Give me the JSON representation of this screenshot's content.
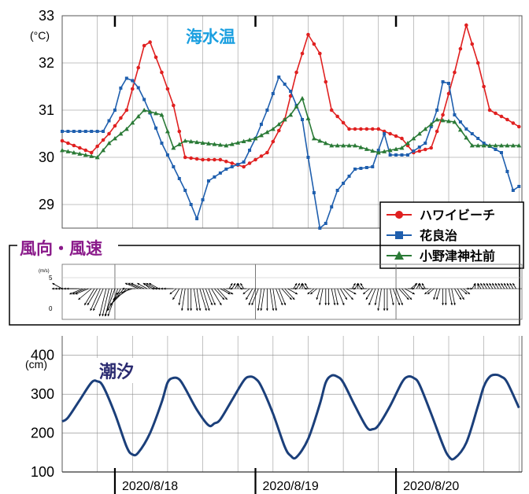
{
  "chart_data": [
    {
      "type": "line",
      "title": "海水温",
      "unit_label": "(°C)",
      "ylim": [
        28.5,
        33
      ],
      "yticks": [
        29,
        30,
        31,
        32,
        33
      ],
      "x_range": [
        "2020-08-17T06:00",
        "2020-08-20T19:00"
      ],
      "x_step_hours": 2,
      "grid": true,
      "legend_position": "right",
      "series": [
        {
          "name": "ハワイビーチ",
          "color": "#e02020",
          "marker": "circle",
          "points": [
            [
              0,
              30.35
            ],
            [
              10,
              30.1
            ],
            [
              16,
              30.5
            ],
            [
              22,
              31.0
            ],
            [
              26,
              31.9
            ],
            [
              29,
              32.6
            ],
            [
              34,
              31.8
            ],
            [
              38,
              31.1
            ],
            [
              42,
              30.0
            ],
            [
              48,
              29.95
            ],
            [
              54,
              29.95
            ],
            [
              62,
              29.8
            ],
            [
              70,
              30.1
            ],
            [
              76,
              30.8
            ],
            [
              80,
              31.8
            ],
            [
              84,
              32.6
            ],
            [
              88,
              32.2
            ],
            [
              92,
              31.0
            ],
            [
              98,
              30.6
            ],
            [
              108,
              30.6
            ],
            [
              116,
              30.4
            ],
            [
              120,
              30.1
            ],
            [
              126,
              30.2
            ],
            [
              130,
              30.9
            ],
            [
              134,
              31.8
            ],
            [
              138,
              32.8
            ],
            [
              142,
              32.0
            ],
            [
              146,
              31.0
            ],
            [
              152,
              30.8
            ],
            [
              156,
              30.65
            ],
            [
              160,
              30.65
            ]
          ]
        },
        {
          "name": "花良治",
          "color": "#1f5fae",
          "marker": "square",
          "points": [
            [
              0,
              30.55
            ],
            [
              14,
              30.55
            ],
            [
              18,
              31.0
            ],
            [
              21,
              31.7
            ],
            [
              25,
              31.6
            ],
            [
              29,
              31.1
            ],
            [
              34,
              30.3
            ],
            [
              38,
              29.8
            ],
            [
              42,
              29.3
            ],
            [
              46,
              28.7
            ],
            [
              50,
              29.5
            ],
            [
              56,
              29.75
            ],
            [
              62,
              29.9
            ],
            [
              66,
              30.4
            ],
            [
              70,
              31.0
            ],
            [
              74,
              31.7
            ],
            [
              78,
              31.4
            ],
            [
              82,
              30.8
            ],
            [
              84,
              30.0
            ],
            [
              88,
              28.5
            ],
            [
              90,
              28.6
            ],
            [
              94,
              29.3
            ],
            [
              100,
              29.75
            ],
            [
              106,
              29.8
            ],
            [
              110,
              30.5
            ],
            [
              112,
              30.05
            ],
            [
              118,
              30.05
            ],
            [
              124,
              30.3
            ],
            [
              128,
              31.0
            ],
            [
              131,
              31.9
            ],
            [
              134,
              30.9
            ],
            [
              138,
              30.6
            ],
            [
              144,
              30.3
            ],
            [
              150,
              30.1
            ],
            [
              154,
              29.3
            ],
            [
              160,
              29.55
            ]
          ]
        },
        {
          "name": "小野津神社前",
          "color": "#2a7a36",
          "marker": "triangle",
          "points": [
            [
              0,
              30.15
            ],
            [
              12,
              30.0
            ],
            [
              16,
              30.3
            ],
            [
              22,
              30.6
            ],
            [
              28,
              31.0
            ],
            [
              34,
              30.9
            ],
            [
              38,
              30.2
            ],
            [
              42,
              30.35
            ],
            [
              56,
              30.25
            ],
            [
              66,
              30.4
            ],
            [
              72,
              30.6
            ],
            [
              78,
              30.9
            ],
            [
              82,
              31.25
            ],
            [
              86,
              30.4
            ],
            [
              92,
              30.25
            ],
            [
              100,
              30.25
            ],
            [
              108,
              30.1
            ],
            [
              116,
              30.2
            ],
            [
              122,
              30.5
            ],
            [
              128,
              30.8
            ],
            [
              134,
              30.75
            ],
            [
              140,
              30.25
            ],
            [
              150,
              30.25
            ],
            [
              160,
              30.25
            ]
          ]
        }
      ]
    },
    {
      "type": "vector",
      "title": "風向・風速",
      "unit_label": "(m/s)",
      "ylim": [
        0,
        5
      ],
      "yticks": [
        0,
        5
      ],
      "x_range": [
        "2020-08-17T06:00",
        "2020-08-20T19:00"
      ],
      "vectors_hourly": [
        [
          -3,
          1
        ],
        [
          -4,
          0
        ],
        [
          -4,
          0
        ],
        [
          -4,
          0
        ],
        [
          -4,
          0
        ],
        [
          -4,
          0
        ],
        [
          -4,
          0
        ],
        [
          -4,
          -1
        ],
        [
          -4,
          -1
        ],
        [
          -4,
          -1
        ],
        [
          -4,
          -2
        ],
        [
          -3,
          -3
        ],
        [
          -3,
          -3
        ],
        [
          -3,
          -4
        ],
        [
          -3,
          -4
        ],
        [
          -2,
          -5
        ],
        [
          -2,
          -5
        ],
        [
          -2,
          -5
        ],
        [
          -3,
          -5
        ],
        [
          -3,
          -5
        ],
        [
          -4,
          -4
        ],
        [
          -4,
          -3
        ],
        [
          -5,
          -3
        ],
        [
          -5,
          -2
        ],
        [
          -5,
          -1
        ],
        [
          -4,
          0
        ],
        [
          -4,
          1
        ],
        [
          -4,
          1
        ],
        [
          -4,
          1
        ],
        [
          -3,
          1
        ],
        [
          -2,
          1
        ],
        [
          -3,
          1
        ],
        [
          -3,
          1
        ],
        [
          -3,
          1
        ],
        [
          -3,
          0
        ],
        [
          -3,
          0
        ],
        [
          -3,
          0
        ],
        [
          -3,
          0
        ],
        [
          -3,
          0
        ],
        [
          -2,
          -1
        ],
        [
          -2,
          -2
        ],
        [
          -1,
          -3
        ],
        [
          -1,
          -4
        ],
        [
          0,
          -4
        ],
        [
          0,
          -4
        ],
        [
          1,
          -4
        ],
        [
          1,
          -4
        ],
        [
          2,
          -4
        ],
        [
          2,
          -4
        ],
        [
          2,
          -3
        ],
        [
          2,
          -3
        ],
        [
          3,
          -3
        ],
        [
          3,
          -2
        ],
        [
          3,
          -2
        ],
        [
          3,
          -1
        ],
        [
          3,
          -1
        ],
        [
          2,
          0
        ],
        [
          1,
          1
        ],
        [
          1,
          1
        ],
        [
          1,
          1
        ],
        [
          0,
          1
        ],
        [
          -1,
          1
        ],
        [
          -1,
          1
        ],
        [
          -2,
          0
        ],
        [
          -2,
          -1
        ],
        [
          -2,
          -2
        ],
        [
          -2,
          -3
        ],
        [
          -2,
          -3
        ],
        [
          -1,
          -4
        ],
        [
          -1,
          -4
        ],
        [
          0,
          -4
        ],
        [
          1,
          -4
        ],
        [
          1,
          -4
        ],
        [
          2,
          -3
        ],
        [
          2,
          -3
        ],
        [
          3,
          -2
        ],
        [
          3,
          -2
        ],
        [
          3,
          -1
        ],
        [
          2,
          0
        ],
        [
          1,
          1
        ],
        [
          1,
          1
        ],
        [
          1,
          1
        ],
        [
          0,
          1
        ],
        [
          -1,
          1
        ],
        [
          -1,
          1
        ],
        [
          -2,
          0
        ],
        [
          -2,
          -1
        ],
        [
          -2,
          -1
        ],
        [
          -1,
          -2
        ],
        [
          -1,
          -3
        ],
        [
          0,
          -3
        ],
        [
          0,
          -3
        ],
        [
          1,
          -3
        ],
        [
          1,
          -3
        ],
        [
          2,
          -3
        ],
        [
          2,
          -2
        ],
        [
          3,
          -2
        ],
        [
          3,
          -1
        ],
        [
          2,
          0
        ],
        [
          1,
          1
        ],
        [
          1,
          1
        ],
        [
          0,
          1
        ],
        [
          -1,
          1
        ],
        [
          -1,
          1
        ],
        [
          -2,
          0
        ],
        [
          -2,
          -1
        ],
        [
          -2,
          -2
        ],
        [
          -2,
          -3
        ],
        [
          -1,
          -3
        ],
        [
          -1,
          -4
        ],
        [
          0,
          -4
        ],
        [
          0,
          -4
        ],
        [
          1,
          -3
        ],
        [
          2,
          -3
        ],
        [
          2,
          -3
        ],
        [
          3,
          -2
        ],
        [
          3,
          -2
        ],
        [
          3,
          -1
        ],
        [
          2,
          0
        ],
        [
          2,
          1
        ],
        [
          1,
          1
        ],
        [
          1,
          1
        ],
        [
          0,
          1
        ],
        [
          -1,
          1
        ],
        [
          -1,
          1
        ],
        [
          -2,
          0
        ],
        [
          -2,
          -1
        ],
        [
          -2,
          -1
        ],
        [
          -1,
          -2
        ],
        [
          -1,
          -2
        ],
        [
          0,
          -3
        ],
        [
          0,
          -3
        ],
        [
          1,
          -3
        ],
        [
          1,
          -3
        ],
        [
          2,
          -2
        ],
        [
          2,
          -2
        ],
        [
          2,
          -1
        ],
        [
          2,
          -1
        ],
        [
          1,
          0
        ],
        [
          1,
          0
        ],
        [
          1,
          1
        ],
        [
          0,
          1
        ],
        [
          0,
          1
        ],
        [
          -1,
          1
        ],
        [
          -1,
          1
        ],
        [
          -1,
          1
        ],
        [
          -1,
          1
        ],
        [
          -1,
          1
        ],
        [
          -1,
          1
        ],
        [
          -1,
          1
        ],
        [
          -1,
          1
        ],
        [
          -1,
          1
        ],
        [
          -1,
          1
        ],
        [
          -1,
          1
        ],
        [
          -1,
          1
        ],
        [
          -1,
          1
        ]
      ]
    },
    {
      "type": "line",
      "title": "潮汐",
      "unit_label": "(cm)",
      "ylim": [
        100,
        450
      ],
      "yticks": [
        100,
        200,
        300,
        400
      ],
      "xlabels": [
        "2020/8/18",
        "2020/8/19",
        "2020/8/20"
      ],
      "x_range": [
        "2020-08-17T06:00",
        "2020-08-20T19:00"
      ],
      "series": [
        {
          "color": "#1b3f7a",
          "points": [
            [
              0,
              230
            ],
            [
              2,
              240
            ],
            [
              6,
              285
            ],
            [
              10,
              330
            ],
            [
              12,
              333
            ],
            [
              14,
              320
            ],
            [
              18,
              250
            ],
            [
              22,
              165
            ],
            [
              24,
              145
            ],
            [
              26,
              150
            ],
            [
              30,
              200
            ],
            [
              34,
              280
            ],
            [
              36,
              330
            ],
            [
              38,
              342
            ],
            [
              40,
              338
            ],
            [
              42,
              315
            ],
            [
              46,
              260
            ],
            [
              50,
              220
            ],
            [
              52,
              225
            ],
            [
              54,
              235
            ],
            [
              58,
              285
            ],
            [
              62,
              335
            ],
            [
              64,
              345
            ],
            [
              66,
              340
            ],
            [
              68,
              320
            ],
            [
              72,
              250
            ],
            [
              76,
              165
            ],
            [
              78,
              142
            ],
            [
              80,
              138
            ],
            [
              84,
              185
            ],
            [
              88,
              275
            ],
            [
              90,
              330
            ],
            [
              92,
              348
            ],
            [
              94,
              345
            ],
            [
              96,
              330
            ],
            [
              100,
              270
            ],
            [
              104,
              215
            ],
            [
              106,
              210
            ],
            [
              108,
              220
            ],
            [
              112,
              270
            ],
            [
              116,
              330
            ],
            [
              118,
              345
            ],
            [
              120,
              342
            ],
            [
              122,
              325
            ],
            [
              126,
              250
            ],
            [
              130,
              170
            ],
            [
              132,
              140
            ],
            [
              134,
              135
            ],
            [
              138,
              175
            ],
            [
              142,
              270
            ],
            [
              144,
              320
            ],
            [
              146,
              345
            ],
            [
              148,
              350
            ],
            [
              150,
              345
            ],
            [
              152,
              330
            ],
            [
              156,
              265
            ]
          ]
        }
      ]
    }
  ]
}
